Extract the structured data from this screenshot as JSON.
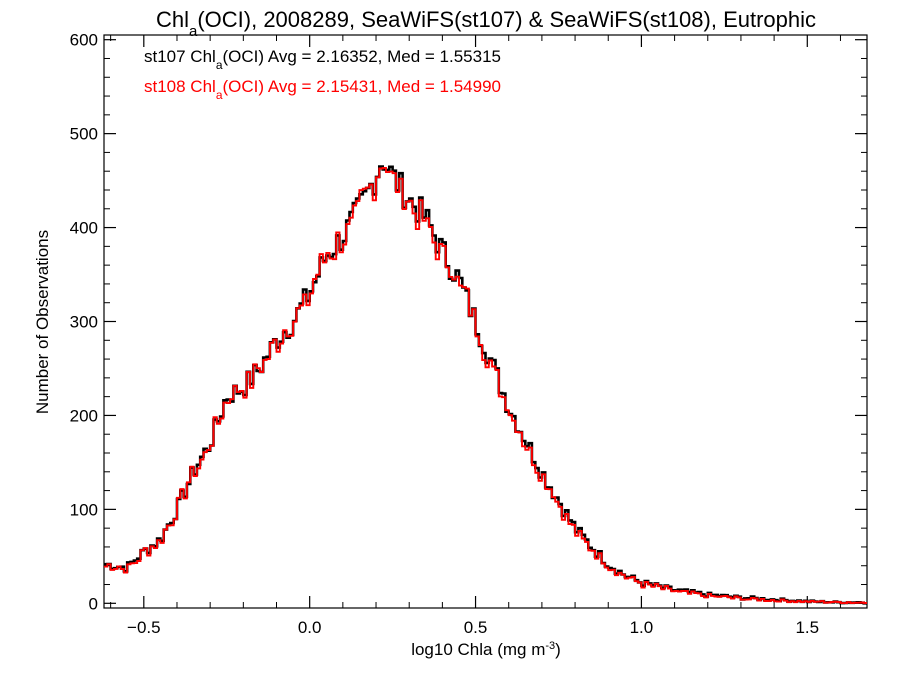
{
  "chart_data": {
    "type": "line",
    "title": {
      "pre": "Chl",
      "sub": "a",
      "post": "(OCI), 2008289, SeaWiFS(st107) & SeaWiFS(st108), Eutrophic"
    },
    "xlabel": {
      "pre": "log10 Chla (mg m",
      "sup": "-3",
      "post": ")"
    },
    "ylabel": "Number of Observations",
    "xlim": [
      -0.62,
      1.68
    ],
    "ylim": [
      -5,
      605
    ],
    "x_ticks": [
      {
        "value": -0.5,
        "label": "-0.5"
      },
      {
        "value": 0.0,
        "label": "0.0"
      },
      {
        "value": 0.5,
        "label": "0.5"
      },
      {
        "value": 1.0,
        "label": "1.0"
      },
      {
        "value": 1.5,
        "label": "1.5"
      }
    ],
    "y_ticks": [
      {
        "value": 0,
        "label": "0"
      },
      {
        "value": 100,
        "label": "100"
      },
      {
        "value": 200,
        "label": "200"
      },
      {
        "value": 300,
        "label": "300"
      },
      {
        "value": 400,
        "label": "400"
      },
      {
        "value": 500,
        "label": "500"
      },
      {
        "value": 600,
        "label": "600"
      }
    ],
    "grid": false,
    "legend_position": "top-left",
    "series": [
      {
        "legend": {
          "pre": "st107 Chl",
          "sub": "a",
          "post": "(OCI) Avg = 2.16352, Med = 1.55315"
        },
        "color": "#000000",
        "style": "step",
        "anchors": [
          [
            -0.62,
            42
          ],
          [
            -0.55,
            38
          ],
          [
            -0.5,
            55
          ],
          [
            -0.45,
            68
          ],
          [
            -0.4,
            100
          ],
          [
            -0.35,
            140
          ],
          [
            -0.3,
            170
          ],
          [
            -0.25,
            220
          ],
          [
            -0.2,
            230
          ],
          [
            -0.15,
            250
          ],
          [
            -0.1,
            280
          ],
          [
            -0.05,
            300
          ],
          [
            0.0,
            330
          ],
          [
            0.05,
            370
          ],
          [
            0.1,
            390
          ],
          [
            0.15,
            420
          ],
          [
            0.2,
            455
          ],
          [
            0.22,
            475
          ],
          [
            0.25,
            455
          ],
          [
            0.3,
            430
          ],
          [
            0.35,
            410
          ],
          [
            0.4,
            375
          ],
          [
            0.45,
            345
          ],
          [
            0.5,
            300
          ],
          [
            0.55,
            255
          ],
          [
            0.6,
            210
          ],
          [
            0.65,
            175
          ],
          [
            0.7,
            140
          ],
          [
            0.75,
            110
          ],
          [
            0.8,
            80
          ],
          [
            0.85,
            60
          ],
          [
            0.9,
            42
          ],
          [
            0.95,
            30
          ],
          [
            1.0,
            22
          ],
          [
            1.1,
            14
          ],
          [
            1.2,
            9
          ],
          [
            1.3,
            6
          ],
          [
            1.4,
            4
          ],
          [
            1.5,
            2
          ],
          [
            1.6,
            1
          ],
          [
            1.68,
            1
          ]
        ]
      },
      {
        "legend": {
          "pre": "st108 Chl",
          "sub": "a",
          "post": "(OCI) Avg = 2.15431, Med = 1.54990"
        },
        "color": "#ff0000",
        "style": "step",
        "anchors": [
          [
            -0.62,
            41
          ],
          [
            -0.55,
            37
          ],
          [
            -0.5,
            54
          ],
          [
            -0.45,
            67
          ],
          [
            -0.4,
            99
          ],
          [
            -0.35,
            139
          ],
          [
            -0.3,
            169
          ],
          [
            -0.25,
            219
          ],
          [
            -0.2,
            229
          ],
          [
            -0.15,
            249
          ],
          [
            -0.1,
            279
          ],
          [
            -0.05,
            299
          ],
          [
            0.0,
            329
          ],
          [
            0.05,
            369
          ],
          [
            0.1,
            389
          ],
          [
            0.15,
            419
          ],
          [
            0.2,
            454
          ],
          [
            0.22,
            478
          ],
          [
            0.25,
            452
          ],
          [
            0.3,
            428
          ],
          [
            0.35,
            407
          ],
          [
            0.4,
            372
          ],
          [
            0.45,
            342
          ],
          [
            0.5,
            297
          ],
          [
            0.55,
            252
          ],
          [
            0.6,
            208
          ],
          [
            0.65,
            173
          ],
          [
            0.7,
            138
          ],
          [
            0.75,
            108
          ],
          [
            0.8,
            78
          ],
          [
            0.85,
            58
          ],
          [
            0.9,
            40
          ],
          [
            0.95,
            29
          ],
          [
            1.0,
            21
          ],
          [
            1.1,
            13
          ],
          [
            1.2,
            8
          ],
          [
            1.3,
            5
          ],
          [
            1.4,
            3
          ],
          [
            1.5,
            2
          ],
          [
            1.6,
            1
          ],
          [
            1.68,
            1
          ]
        ]
      }
    ]
  }
}
